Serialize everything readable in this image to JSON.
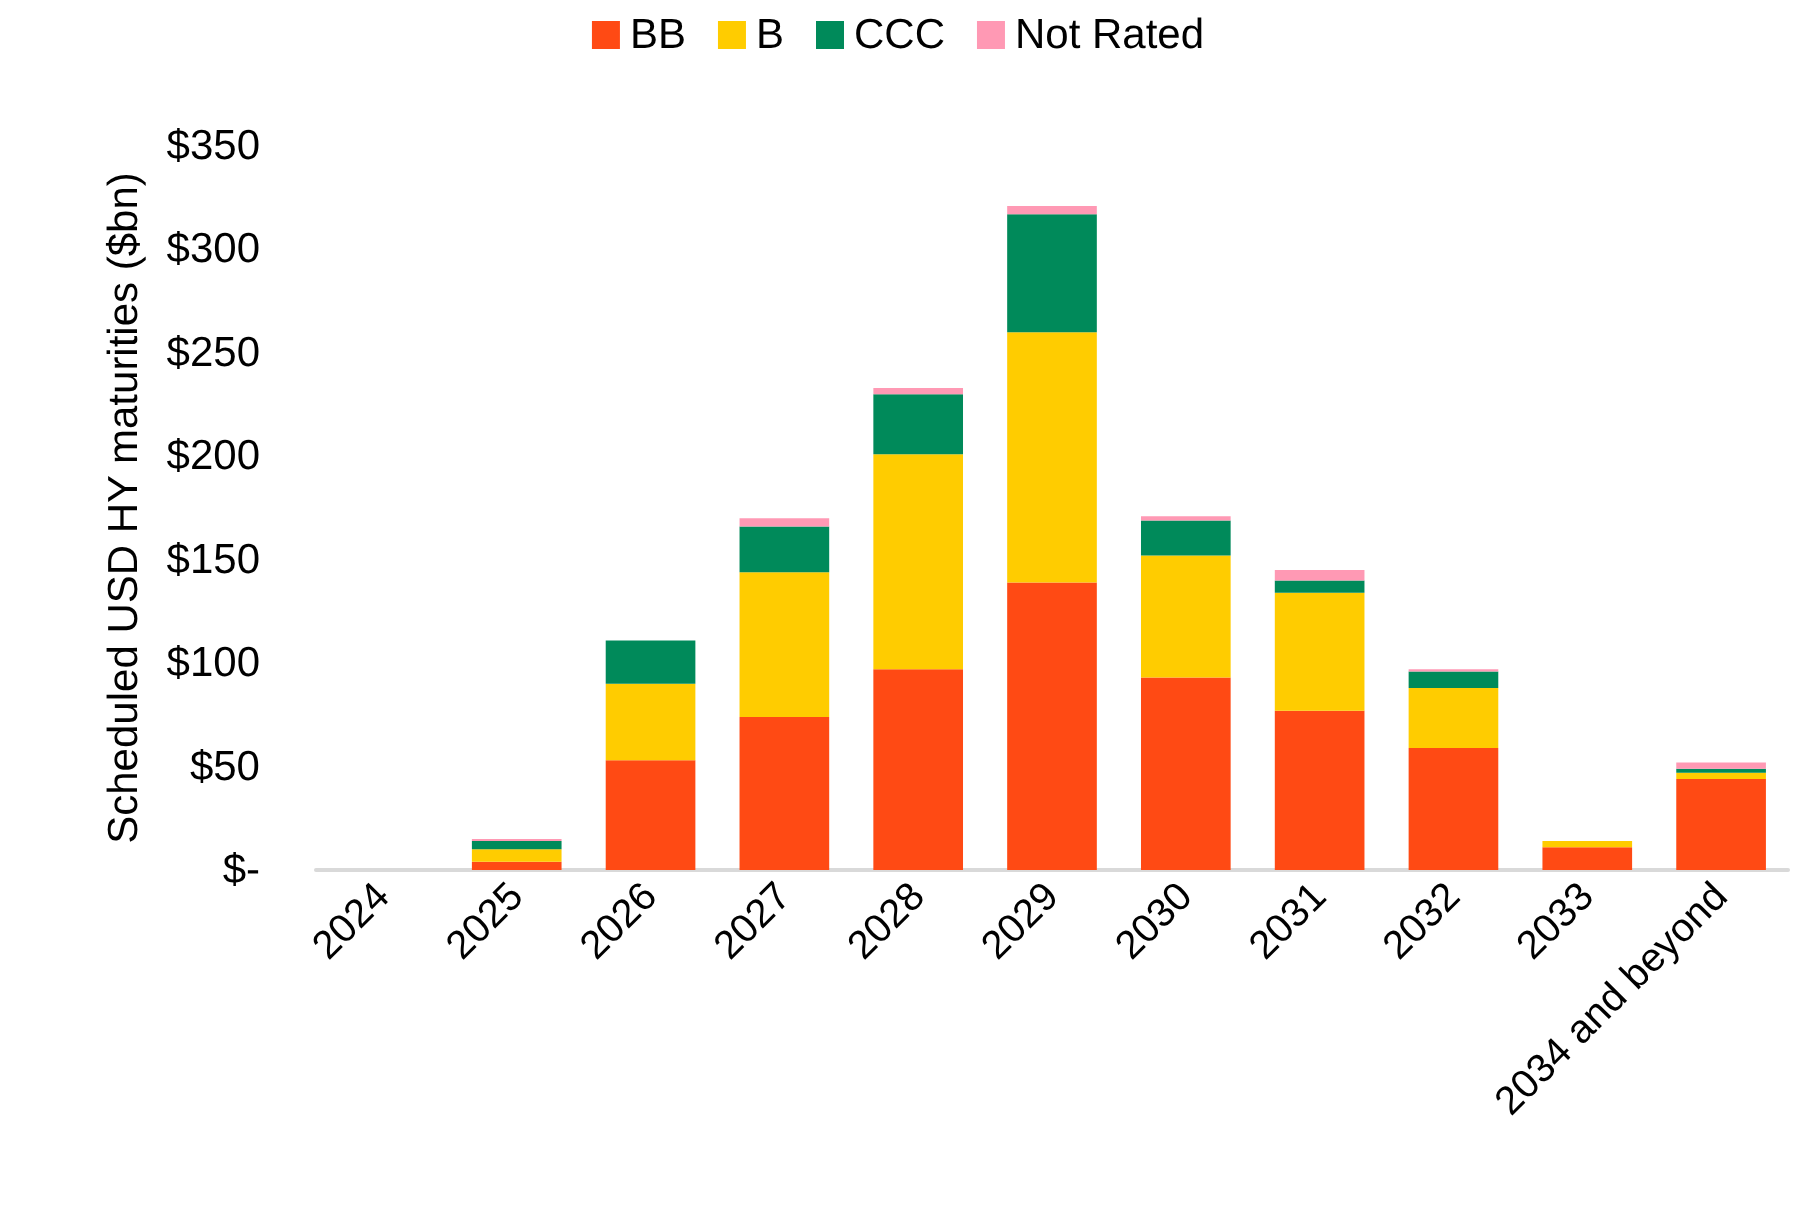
{
  "chart_data": {
    "type": "bar",
    "stacked": true,
    "ylabel": "Scheduled USD HY maturities ($bn)",
    "categories": [
      "2024",
      "2025",
      "2026",
      "2027",
      "2028",
      "2029",
      "2030",
      "2031",
      "2032",
      "2033",
      "2034 and beyond"
    ],
    "series": [
      {
        "name": "BB",
        "color": "#ff4a14",
        "values": [
          0,
          4,
          53,
          74,
          97,
          139,
          93,
          77,
          59,
          11,
          44
        ]
      },
      {
        "name": "B",
        "color": "#ffcc00",
        "values": [
          0,
          6,
          37,
          70,
          104,
          121,
          59,
          57,
          29,
          3,
          3
        ]
      },
      {
        "name": "CCC",
        "color": "#008a5a",
        "values": [
          0,
          4,
          21,
          22,
          29,
          57,
          17,
          6,
          8,
          0,
          2
        ]
      },
      {
        "name": "Not Rated",
        "color": "#ff99b4",
        "values": [
          0,
          1,
          0,
          4,
          3,
          4,
          2,
          5,
          1,
          0,
          3
        ]
      }
    ],
    "ylim": [
      0,
      350
    ],
    "yticks": [
      {
        "value": 0,
        "label": "$-"
      },
      {
        "value": 50,
        "label": "$50"
      },
      {
        "value": 100,
        "label": "$100"
      },
      {
        "value": 150,
        "label": "$150"
      },
      {
        "value": 200,
        "label": "$200"
      },
      {
        "value": 250,
        "label": "$250"
      },
      {
        "value": 300,
        "label": "$300"
      },
      {
        "value": 350,
        "label": "$350"
      }
    ],
    "grid": false,
    "legend": "top"
  }
}
